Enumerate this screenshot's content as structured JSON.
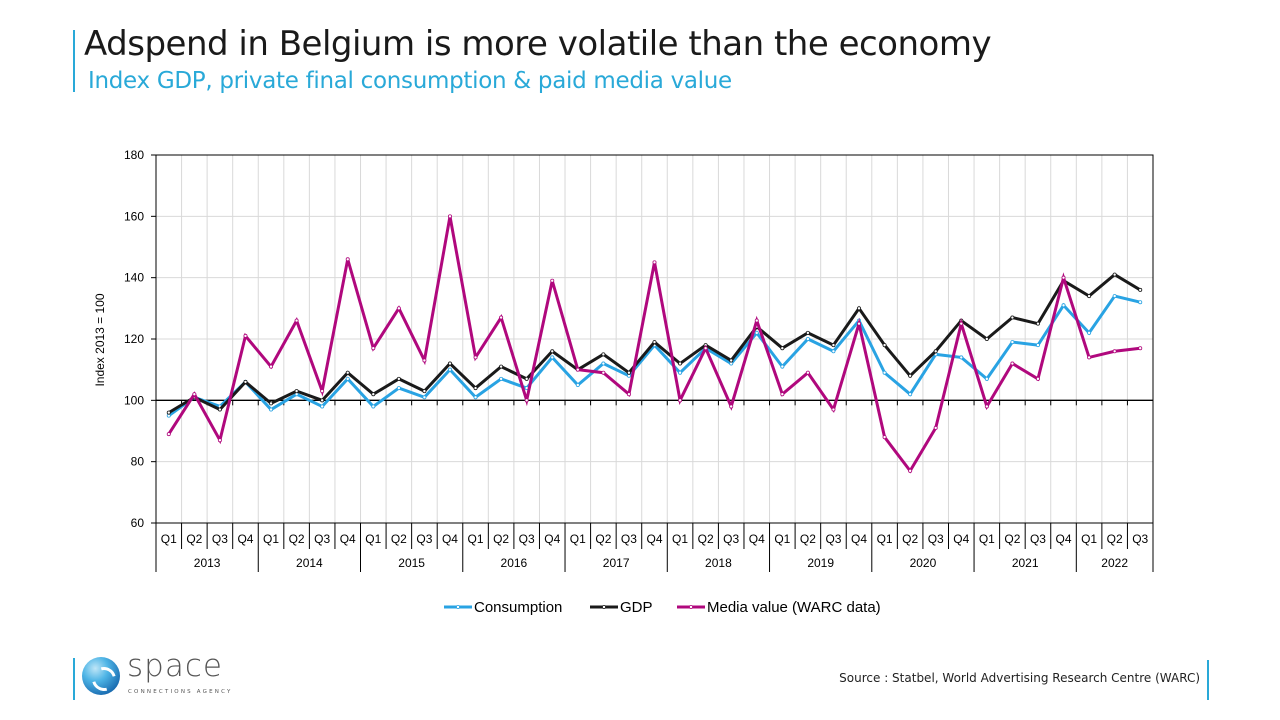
{
  "header": {
    "title": "Adspend in Belgium is more volatile than the economy",
    "subtitle": "Index GDP, private final consumption & paid media value"
  },
  "footer": {
    "source": "Source : Statbel, World Advertising Research Centre (WARC)",
    "logo_word": "space",
    "logo_tagline": "CONNECTIONS AGENCY"
  },
  "chart_data": {
    "type": "line",
    "title": "",
    "xlabel": "",
    "ylabel": "Index 2013 = 100",
    "ylim": [
      60,
      180
    ],
    "yticks": [
      60,
      80,
      100,
      120,
      140,
      160,
      180
    ],
    "grid": true,
    "legend_position": "bottom",
    "years": [
      "2013",
      "2014",
      "2015",
      "2016",
      "2017",
      "2018",
      "2019",
      "2020",
      "2021",
      "2022"
    ],
    "quarters_per_year": [
      4,
      4,
      4,
      4,
      4,
      4,
      4,
      4,
      4,
      3
    ],
    "categories": [
      "Q1",
      "Q2",
      "Q3",
      "Q4",
      "Q1",
      "Q2",
      "Q3",
      "Q4",
      "Q1",
      "Q2",
      "Q3",
      "Q4",
      "Q1",
      "Q2",
      "Q3",
      "Q4",
      "Q1",
      "Q2",
      "Q3",
      "Q4",
      "Q1",
      "Q2",
      "Q3",
      "Q4",
      "Q1",
      "Q2",
      "Q3",
      "Q4",
      "Q1",
      "Q2",
      "Q3",
      "Q4",
      "Q1",
      "Q2",
      "Q3",
      "Q4",
      "Q1",
      "Q2",
      "Q3"
    ],
    "series": [
      {
        "name": "Consumption",
        "color": "#29a3e3",
        "values": [
          95,
          101,
          98,
          106,
          97,
          102,
          98,
          107,
          98,
          104,
          101,
          110,
          101,
          107,
          104,
          114,
          105,
          112,
          108,
          118,
          109,
          117,
          112,
          122,
          111,
          120,
          116,
          126,
          109,
          102,
          115,
          114,
          107,
          119,
          118,
          131,
          122,
          134,
          132
        ]
      },
      {
        "name": "GDP",
        "color": "#1a1a1a",
        "values": [
          96,
          101,
          97,
          106,
          99,
          103,
          100,
          109,
          102,
          107,
          103,
          112,
          104,
          111,
          107,
          116,
          110,
          115,
          109,
          119,
          112,
          118,
          113,
          124,
          117,
          122,
          118,
          130,
          118,
          108,
          116,
          126,
          120,
          127,
          125,
          139,
          134,
          141,
          136
        ]
      },
      {
        "name": "Media value (WARC data)",
        "color": "#b0087d",
        "values": [
          89,
          102,
          87,
          121,
          111,
          126,
          103,
          146,
          117,
          130,
          113,
          160,
          114,
          127,
          100,
          139,
          110,
          109,
          102,
          145,
          100,
          117,
          98,
          126,
          102,
          109,
          97,
          125,
          88,
          77,
          91,
          125,
          98,
          112,
          107,
          140,
          114,
          116,
          117
        ]
      }
    ]
  }
}
